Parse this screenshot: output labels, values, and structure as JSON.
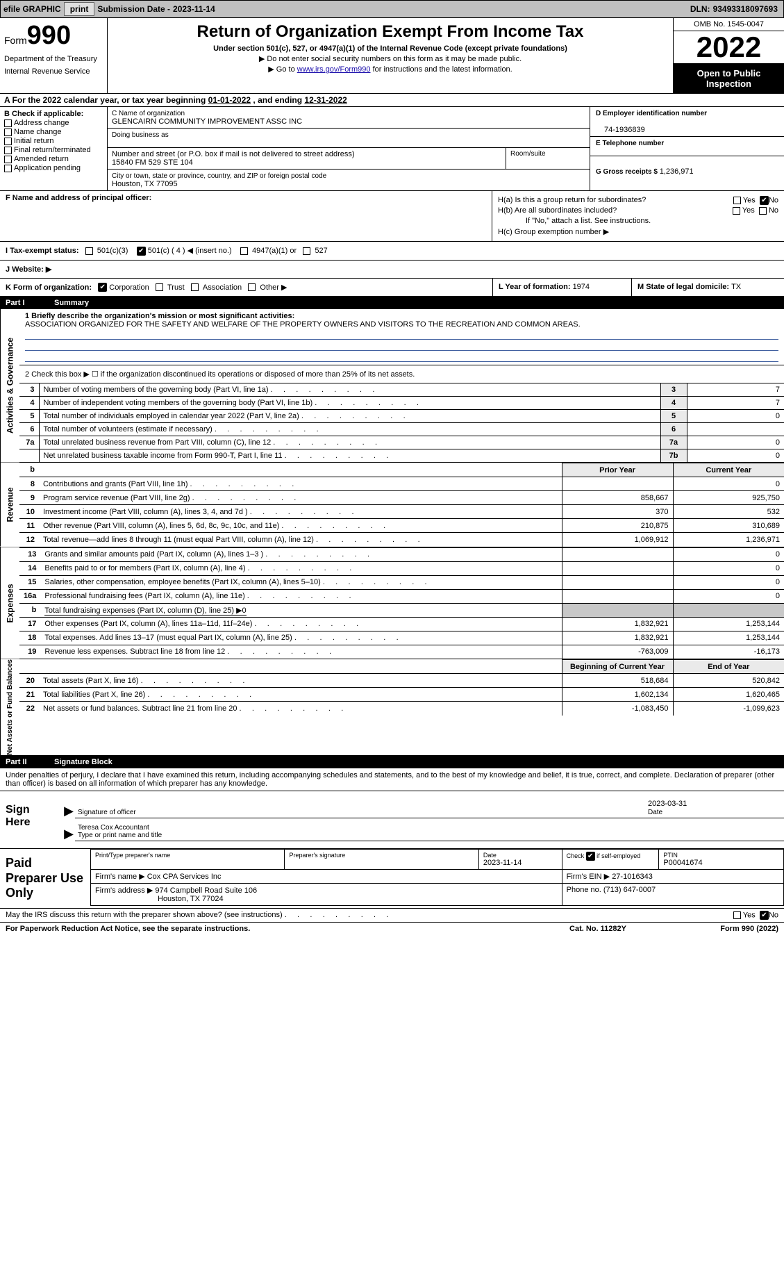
{
  "topbar": {
    "efile_label": "efile GRAPHIC",
    "print_btn": "print",
    "submission_label": "Submission Date - ",
    "submission_date": "2023-11-14",
    "dln_label": "DLN: ",
    "dln": "93493318097693"
  },
  "header": {
    "form_word": "Form",
    "form_num": "990",
    "dept": "Department of the Treasury",
    "irs": "Internal Revenue Service",
    "title": "Return of Organization Exempt From Income Tax",
    "subtitle": "Under section 501(c), 527, or 4947(a)(1) of the Internal Revenue Code (except private foundations)",
    "arrow1": "▶ Do not enter social security numbers on this form as it may be made public.",
    "arrow2_pre": "▶ Go to ",
    "arrow2_link": "www.irs.gov/Form990",
    "arrow2_post": " for instructions and the latest information.",
    "omb": "OMB No. 1545-0047",
    "year": "2022",
    "inspect1": "Open to Public",
    "inspect2": "Inspection"
  },
  "sectionA": {
    "text_pre": "A For the 2022 calendar year, or tax year beginning ",
    "begin": "01-01-2022",
    "mid": "   , and ending ",
    "end": "12-31-2022"
  },
  "sectionB": {
    "label": "B Check if applicable:",
    "opts": [
      "Address change",
      "Name change",
      "Initial return",
      "Final return/terminated",
      "Amended return",
      "Application pending"
    ]
  },
  "sectionC": {
    "name_label": "C Name of organization",
    "name": "GLENCAIRN COMMUNITY IMPROVEMENT ASSC INC",
    "dba_label": "Doing business as",
    "dba": "",
    "street_label": "Number and street (or P.O. box if mail is not delivered to street address)",
    "street": "15840 FM 529 STE 104",
    "room_label": "Room/suite",
    "city_label": "City or town, state or province, country, and ZIP or foreign postal code",
    "city": "Houston, TX  77095"
  },
  "sectionD": {
    "ein_label": "D Employer identification number",
    "ein": "74-1936839",
    "phone_label": "E Telephone number",
    "phone": "",
    "gross_label": "G Gross receipts $ ",
    "gross": "1,236,971"
  },
  "sectionF": {
    "label": "F  Name and address of principal officer:",
    "value": ""
  },
  "sectionH": {
    "ha_label": "H(a)  Is this a group return for subordinates?",
    "hb_label": "H(b)  Are all subordinates included?",
    "hb_note": "If \"No,\" attach a list. See instructions.",
    "hc_label": "H(c)  Group exemption number ▶",
    "yes": "Yes",
    "no": "No"
  },
  "sectionI": {
    "label": "I  Tax-exempt status:",
    "opt1": "501(c)(3)",
    "opt2_pre": "501(c) ( ",
    "opt2_num": "4",
    "opt2_post": " ) ◀ (insert no.)",
    "opt3": "4947(a)(1) or",
    "opt4": "527"
  },
  "sectionJ": {
    "label": "J  Website: ▶",
    "value": ""
  },
  "sectionK": {
    "label": "K Form of organization:",
    "opts": [
      "Corporation",
      "Trust",
      "Association",
      "Other ▶"
    ],
    "L_label": "L Year of formation: ",
    "L_val": "1974",
    "M_label": "M State of legal domicile: ",
    "M_val": "TX"
  },
  "part1": {
    "num": "Part I",
    "title": "Summary"
  },
  "summary": {
    "vert_activities": "Activities & Governance",
    "vert_revenue": "Revenue",
    "vert_expenses": "Expenses",
    "vert_netassets": "Net Assets or Fund Balances",
    "line1_label": "1   Briefly describe the organization's mission or most significant activities:",
    "line1_text": "ASSOCIATION ORGANIZED FOR THE SAFETY AND WELFARE OF THE PROPERTY OWNERS AND VISITORS TO THE RECREATION AND COMMON AREAS.",
    "line2": "2   Check this box ▶ ☐  if the organization discontinued its operations or disposed of more than 25% of its net assets.",
    "rows_gov": [
      {
        "n": "3",
        "desc": "Number of voting members of the governing body (Part VI, line 1a)",
        "box": "3",
        "val": "7"
      },
      {
        "n": "4",
        "desc": "Number of independent voting members of the governing body (Part VI, line 1b)",
        "box": "4",
        "val": "7"
      },
      {
        "n": "5",
        "desc": "Total number of individuals employed in calendar year 2022 (Part V, line 2a)",
        "box": "5",
        "val": "0"
      },
      {
        "n": "6",
        "desc": "Total number of volunteers (estimate if necessary)",
        "box": "6",
        "val": ""
      },
      {
        "n": "7a",
        "desc": "Total unrelated business revenue from Part VIII, column (C), line 12",
        "box": "7a",
        "val": "0"
      },
      {
        "n": "",
        "desc": "Net unrelated business taxable income from Form 990-T, Part I, line 11",
        "box": "7b",
        "val": "0"
      }
    ],
    "col_prior": "Prior Year",
    "col_current": "Current Year",
    "col_begin": "Beginning of Current Year",
    "col_end": "End of Year",
    "rows_rev": [
      {
        "n": "8",
        "desc": "Contributions and grants (Part VIII, line 1h)",
        "py": "",
        "cy": "0"
      },
      {
        "n": "9",
        "desc": "Program service revenue (Part VIII, line 2g)",
        "py": "858,667",
        "cy": "925,750"
      },
      {
        "n": "10",
        "desc": "Investment income (Part VIII, column (A), lines 3, 4, and 7d )",
        "py": "370",
        "cy": "532"
      },
      {
        "n": "11",
        "desc": "Other revenue (Part VIII, column (A), lines 5, 6d, 8c, 9c, 10c, and 11e)",
        "py": "210,875",
        "cy": "310,689"
      },
      {
        "n": "12",
        "desc": "Total revenue—add lines 8 through 11 (must equal Part VIII, column (A), line 12)",
        "py": "1,069,912",
        "cy": "1,236,971"
      }
    ],
    "rows_exp": [
      {
        "n": "13",
        "desc": "Grants and similar amounts paid (Part IX, column (A), lines 1–3 )",
        "py": "",
        "cy": "0"
      },
      {
        "n": "14",
        "desc": "Benefits paid to or for members (Part IX, column (A), line 4)",
        "py": "",
        "cy": "0"
      },
      {
        "n": "15",
        "desc": "Salaries, other compensation, employee benefits (Part IX, column (A), lines 5–10)",
        "py": "",
        "cy": "0"
      },
      {
        "n": "16a",
        "desc": "Professional fundraising fees (Part IX, column (A), line 11e)",
        "py": "",
        "cy": "0"
      },
      {
        "n": "b",
        "desc": "Total fundraising expenses (Part IX, column (D), line 25) ▶0",
        "py": "GRAY",
        "cy": "GRAY"
      },
      {
        "n": "17",
        "desc": "Other expenses (Part IX, column (A), lines 11a–11d, 11f–24e)",
        "py": "1,832,921",
        "cy": "1,253,144"
      },
      {
        "n": "18",
        "desc": "Total expenses. Add lines 13–17 (must equal Part IX, column (A), line 25)",
        "py": "1,832,921",
        "cy": "1,253,144"
      },
      {
        "n": "19",
        "desc": "Revenue less expenses. Subtract line 18 from line 12",
        "py": "-763,009",
        "cy": "-16,173"
      }
    ],
    "rows_net": [
      {
        "n": "20",
        "desc": "Total assets (Part X, line 16)",
        "py": "518,684",
        "cy": "520,842"
      },
      {
        "n": "21",
        "desc": "Total liabilities (Part X, line 26)",
        "py": "1,602,134",
        "cy": "1,620,465"
      },
      {
        "n": "22",
        "desc": "Net assets or fund balances. Subtract line 21 from line 20",
        "py": "-1,083,450",
        "cy": "-1,099,623"
      }
    ]
  },
  "part2": {
    "num": "Part II",
    "title": "Signature Block"
  },
  "sig": {
    "declaration": "Under penalties of perjury, I declare that I have examined this return, including accompanying schedules and statements, and to the best of my knowledge and belief, it is true, correct, and complete. Declaration of preparer (other than officer) is based on all information of which preparer has any knowledge.",
    "sign_here": "Sign Here",
    "sig_officer_label": "Signature of officer",
    "date_val": "2023-03-31",
    "date_label": "Date",
    "name_title": "Teresa Cox  Accountant",
    "name_title_label": "Type or print name and title"
  },
  "prep": {
    "title": "Paid Preparer Use Only",
    "print_name_label": "Print/Type preparer's name",
    "print_name": "",
    "prep_sig_label": "Preparer's signature",
    "date_label": "Date",
    "date": "2023-11-14",
    "check_label": "Check",
    "check_suffix": "if self-employed",
    "ptin_label": "PTIN",
    "ptin": "P00041674",
    "firm_name_label": "Firm's name      ▶ ",
    "firm_name": "Cox CPA Services Inc",
    "firm_ein_label": "Firm's EIN ▶ ",
    "firm_ein": "27-1016343",
    "firm_addr_label": "Firm's address ▶ ",
    "firm_addr1": "974 Campbell Road Suite 106",
    "firm_addr2": "Houston, TX  77024",
    "phone_label": "Phone no. ",
    "phone": "(713) 647-0007"
  },
  "footer": {
    "discuss": "May the IRS discuss this return with the preparer shown above? (see instructions)",
    "yes": "Yes",
    "no": "No",
    "paperwork": "For Paperwork Reduction Act Notice, see the separate instructions.",
    "cat": "Cat. No. 11282Y",
    "formref": "Form 990 (2022)"
  },
  "colors": {
    "link": "#1a0dab",
    "gray_bg": "#c8c8c8",
    "light_gray": "#eaeaea",
    "underline_blue": "#4060a0"
  }
}
